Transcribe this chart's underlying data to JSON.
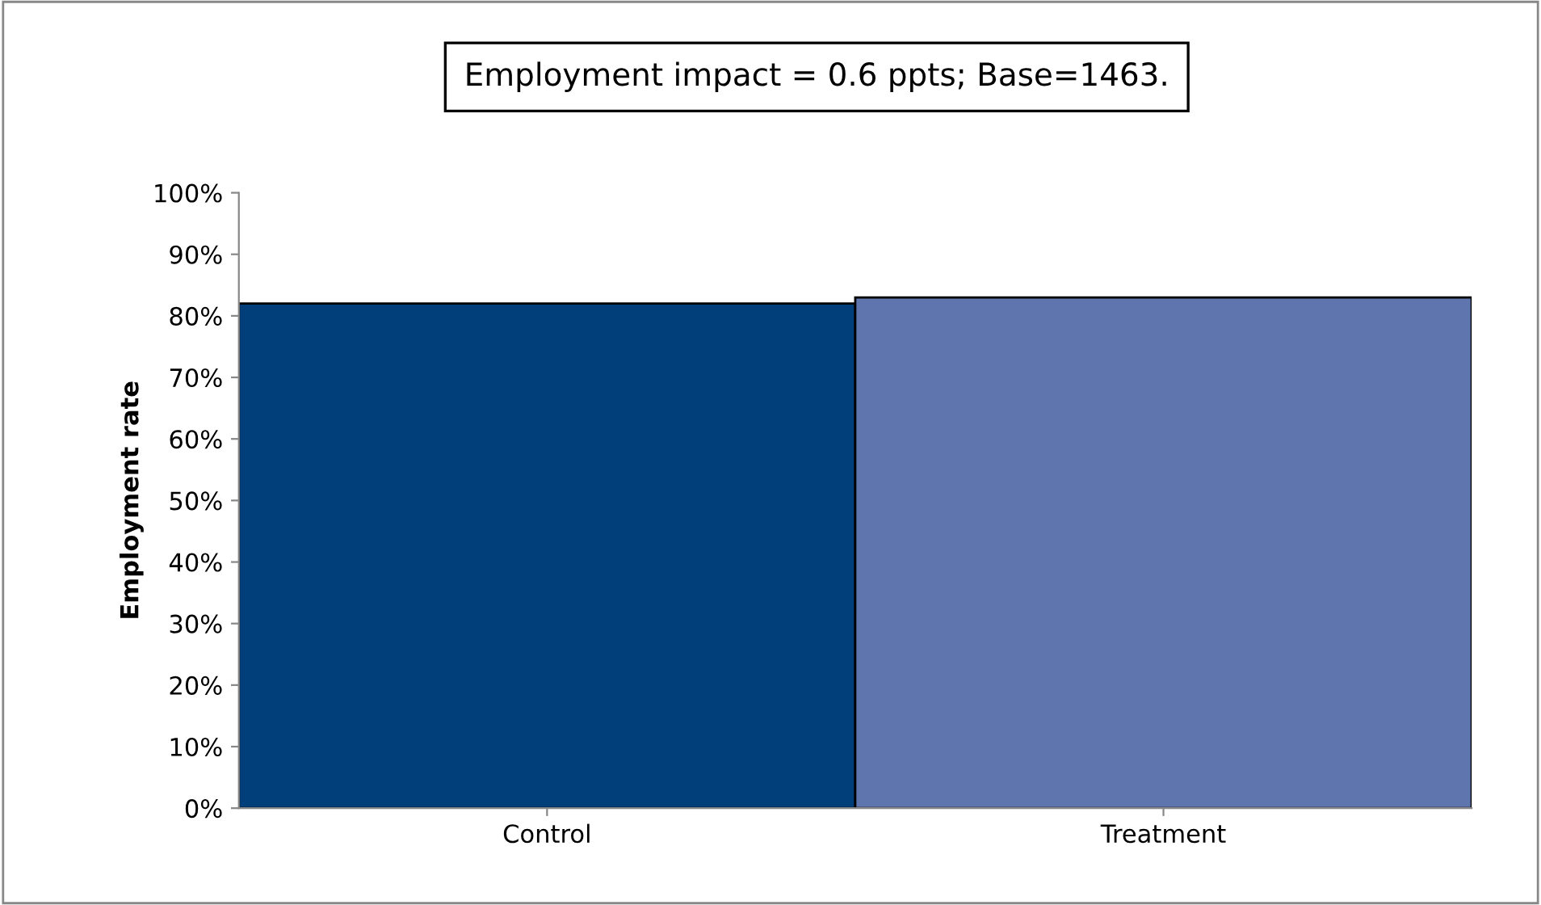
{
  "chart_data": {
    "type": "bar",
    "title": "Employment impact = 0.6 ppts; Base=1463.",
    "ylabel": "Employment rate",
    "categories": [
      "Control",
      "Treatment"
    ],
    "values": [
      82,
      83
    ],
    "colors": [
      "#003f7a",
      "#5f75ad"
    ],
    "ylim": [
      0,
      100
    ],
    "yticks": [
      {
        "value": 0,
        "label": "0%"
      },
      {
        "value": 10,
        "label": "10%"
      },
      {
        "value": 20,
        "label": "20%"
      },
      {
        "value": 30,
        "label": "30%"
      },
      {
        "value": 40,
        "label": "40%"
      },
      {
        "value": 50,
        "label": "50%"
      },
      {
        "value": 60,
        "label": "60%"
      },
      {
        "value": 70,
        "label": "70%"
      },
      {
        "value": 80,
        "label": "80%"
      },
      {
        "value": 90,
        "label": "90%"
      },
      {
        "value": 100,
        "label": "100%"
      }
    ],
    "grid": false,
    "legend": false
  }
}
